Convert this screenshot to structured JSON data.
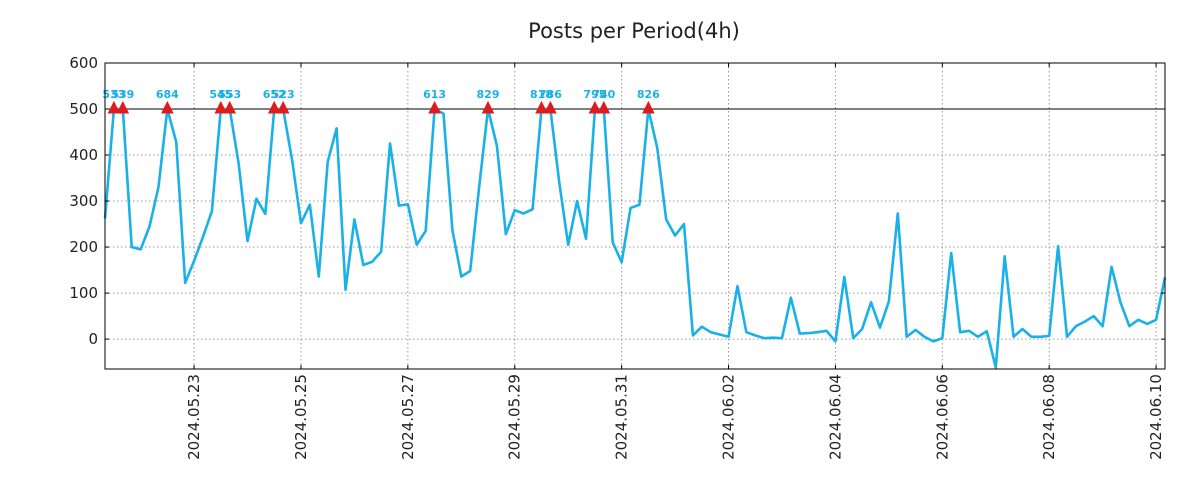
{
  "chart_data": {
    "type": "line",
    "title": "Posts per Period(4h)",
    "xlabel": "",
    "ylabel": "",
    "ylim": [
      -65,
      600
    ],
    "yticks": [
      0,
      100,
      200,
      300,
      400,
      500,
      600
    ],
    "xtick_labels": [
      "2024.05.23",
      "2024.05.25",
      "2024.05.27",
      "2024.05.29",
      "2024.05.31",
      "2024.06.02",
      "2024.06.04",
      "2024.06.06",
      "2024.06.08",
      "2024.06.10"
    ],
    "x_start": "2024.05.21 08:00",
    "x_step_hours": 4,
    "cap_value": 500,
    "grid": true,
    "series": [
      {
        "name": "Posts",
        "color": "#1ab0e8",
        "values": [
          262,
          533,
          539,
          200,
          195,
          245,
          330,
          684,
          428,
          122,
          170,
          222,
          278,
          545,
          553,
          382,
          213,
          305,
          272,
          652,
          523,
          390,
          252,
          292,
          136,
          385,
          458,
          107,
          260,
          161,
          168,
          190,
          425,
          290,
          293,
          205,
          235,
          613,
          490,
          237,
          136,
          148,
          330,
          829,
          420,
          228,
          280,
          273,
          282,
          818,
          786,
          340,
          205,
          300,
          218,
          795,
          740,
          210,
          167,
          285,
          292,
          826,
          415,
          260,
          225,
          250,
          8,
          27,
          15,
          10,
          5,
          115,
          15,
          8,
          2,
          3,
          2,
          90,
          12,
          13,
          15,
          18,
          -5,
          135,
          2,
          22,
          80,
          25,
          82,
          273,
          5,
          20,
          5,
          -5,
          2,
          187,
          15,
          18,
          5,
          17,
          -62,
          180,
          5,
          22,
          5,
          5,
          7,
          202,
          5,
          28,
          38,
          50,
          28,
          157,
          80,
          28,
          42,
          33,
          42,
          134
        ]
      }
    ],
    "peak_color": "#e11b1b",
    "peak_label_color": "#1ab0e8",
    "peaks": [
      {
        "index": 1,
        "value": 533,
        "label": "533"
      },
      {
        "index": 2,
        "value": 539,
        "label": "539"
      },
      {
        "index": 7,
        "value": 684,
        "label": "684"
      },
      {
        "index": 13,
        "value": 545,
        "label": "545"
      },
      {
        "index": 14,
        "value": 553,
        "label": "553"
      },
      {
        "index": 19,
        "value": 652,
        "label": "652"
      },
      {
        "index": 20,
        "value": 523,
        "label": "523"
      },
      {
        "index": 37,
        "value": 613,
        "label": "613"
      },
      {
        "index": 43,
        "value": 829,
        "label": "829"
      },
      {
        "index": 49,
        "value": 818,
        "label": "818"
      },
      {
        "index": 50,
        "value": 786,
        "label": "786"
      },
      {
        "index": 55,
        "value": 795,
        "label": "795"
      },
      {
        "index": 56,
        "value": 740,
        "label": "740"
      },
      {
        "index": 61,
        "value": 826,
        "label": "826"
      }
    ]
  }
}
